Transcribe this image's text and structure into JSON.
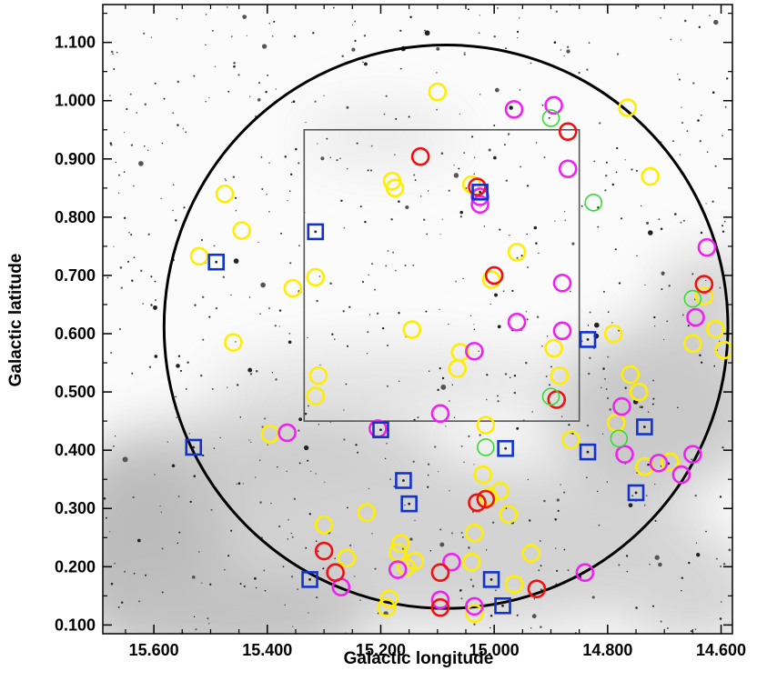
{
  "chart_data": {
    "type": "scatter",
    "title": "",
    "xlabel": "Galactic longitude",
    "ylabel": "Galactic latitude",
    "xlim": [
      15.69,
      14.58
    ],
    "ylim": [
      0.085,
      1.165
    ],
    "x_reversed": true,
    "x_ticks": [
      15.6,
      15.4,
      15.2,
      15.0,
      14.8,
      14.6
    ],
    "x_tick_labels": [
      "15.600",
      "15.400",
      "15.200",
      "15.000",
      "14.800",
      "14.600"
    ],
    "y_ticks": [
      0.1,
      0.2,
      0.3,
      0.4,
      0.5,
      0.6,
      0.7,
      0.8,
      0.9,
      1.0,
      1.1
    ],
    "y_tick_labels": [
      "0.100",
      "0.200",
      "0.300",
      "0.400",
      "0.500",
      "0.600",
      "0.700",
      "0.800",
      "0.900",
      "1.000",
      "1.100"
    ],
    "background": "grayscale sky survey image",
    "overlays": {
      "circle": {
        "center_l": 15.085,
        "center_b": 0.612,
        "radius_deg": 0.497,
        "color": "#000000"
      },
      "box": {
        "l_min": 14.85,
        "l_max": 15.335,
        "b_min": 0.45,
        "b_max": 0.95,
        "color": "#555555"
      }
    },
    "series": [
      {
        "name": "yellow circles",
        "marker": "circle",
        "color": "#ffee00",
        "points": [
          [
            15.475,
            0.84
          ],
          [
            15.52,
            0.733
          ],
          [
            15.445,
            0.777
          ],
          [
            15.46,
            0.585
          ],
          [
            15.395,
            0.428
          ],
          [
            15.355,
            0.678
          ],
          [
            15.315,
            0.697
          ],
          [
            15.31,
            0.528
          ],
          [
            15.315,
            0.493
          ],
          [
            15.3,
            0.272
          ],
          [
            15.26,
            0.215
          ],
          [
            15.225,
            0.293
          ],
          [
            15.18,
            0.862
          ],
          [
            15.175,
            0.85
          ],
          [
            15.145,
            0.607
          ],
          [
            15.1,
            1.015
          ],
          [
            15.06,
            0.568
          ],
          [
            15.065,
            0.54
          ],
          [
            15.04,
            0.856
          ],
          [
            15.005,
            0.693
          ],
          [
            15.015,
            0.443
          ],
          [
            15.02,
            0.358
          ],
          [
            15.01,
            0.32
          ],
          [
            14.99,
            0.33
          ],
          [
            14.975,
            0.29
          ],
          [
            14.96,
            0.74
          ],
          [
            14.895,
            0.575
          ],
          [
            14.885,
            0.528
          ],
          [
            14.865,
            0.418
          ],
          [
            14.79,
            0.6
          ],
          [
            14.76,
            0.53
          ],
          [
            14.785,
            0.447
          ],
          [
            14.745,
            0.5
          ],
          [
            14.735,
            0.372
          ],
          [
            14.765,
            0.988
          ],
          [
            14.725,
            0.87
          ],
          [
            14.69,
            0.38
          ],
          [
            14.65,
            0.583
          ],
          [
            14.63,
            0.665
          ],
          [
            14.61,
            0.608
          ],
          [
            14.595,
            0.572
          ],
          [
            15.185,
            0.145
          ],
          [
            15.19,
            0.13
          ],
          [
            15.165,
            0.24
          ],
          [
            15.17,
            0.225
          ],
          [
            15.155,
            0.2
          ],
          [
            15.14,
            0.21
          ],
          [
            15.035,
            0.258
          ],
          [
            15.04,
            0.208
          ],
          [
            15.035,
            0.12
          ],
          [
            14.965,
            0.17
          ],
          [
            14.935,
            0.223
          ]
        ]
      },
      {
        "name": "magenta circles",
        "marker": "circle",
        "color": "#ee22ee",
        "points": [
          [
            15.365,
            0.43
          ],
          [
            15.205,
            0.437
          ],
          [
            15.095,
            0.463
          ],
          [
            15.035,
            0.57
          ],
          [
            15.025,
            0.835
          ],
          [
            15.025,
            0.822
          ],
          [
            14.965,
            0.985
          ],
          [
            14.895,
            0.992
          ],
          [
            14.87,
            0.883
          ],
          [
            14.88,
            0.687
          ],
          [
            14.88,
            0.605
          ],
          [
            14.96,
            0.62
          ],
          [
            14.775,
            0.475
          ],
          [
            14.77,
            0.393
          ],
          [
            14.71,
            0.378
          ],
          [
            14.67,
            0.358
          ],
          [
            14.65,
            0.393
          ],
          [
            14.645,
            0.628
          ],
          [
            14.625,
            0.748
          ],
          [
            15.27,
            0.165
          ],
          [
            15.17,
            0.195
          ],
          [
            15.075,
            0.208
          ],
          [
            15.095,
            0.143
          ],
          [
            15.035,
            0.132
          ],
          [
            14.84,
            0.19
          ]
        ]
      },
      {
        "name": "red circles",
        "marker": "circle",
        "color": "#ee1111",
        "points": [
          [
            15.13,
            0.904
          ],
          [
            15.03,
            0.852
          ],
          [
            15.0,
            0.7
          ],
          [
            14.89,
            0.487
          ],
          [
            14.87,
            0.947
          ],
          [
            14.63,
            0.685
          ],
          [
            15.3,
            0.227
          ],
          [
            15.28,
            0.19
          ],
          [
            15.095,
            0.19
          ],
          [
            15.095,
            0.13
          ],
          [
            15.03,
            0.31
          ],
          [
            15.015,
            0.316
          ],
          [
            14.925,
            0.162
          ]
        ]
      },
      {
        "name": "green circles",
        "marker": "circle",
        "color": "#33dd33",
        "points": [
          [
            14.9,
            0.97
          ],
          [
            14.825,
            0.825
          ],
          [
            14.9,
            0.492
          ],
          [
            15.015,
            0.405
          ],
          [
            14.78,
            0.42
          ],
          [
            14.65,
            0.66
          ]
        ]
      },
      {
        "name": "blue squares",
        "marker": "square",
        "color": "#1133cc",
        "points": [
          [
            15.53,
            0.405
          ],
          [
            15.49,
            0.723
          ],
          [
            15.315,
            0.775
          ],
          [
            15.2,
            0.435
          ],
          [
            15.16,
            0.348
          ],
          [
            15.15,
            0.308
          ],
          [
            15.025,
            0.843
          ],
          [
            14.98,
            0.403
          ],
          [
            14.835,
            0.59
          ],
          [
            14.835,
            0.397
          ],
          [
            14.735,
            0.44
          ],
          [
            14.75,
            0.327
          ],
          [
            15.325,
            0.178
          ],
          [
            15.005,
            0.178
          ],
          [
            14.985,
            0.133
          ]
        ]
      }
    ]
  }
}
